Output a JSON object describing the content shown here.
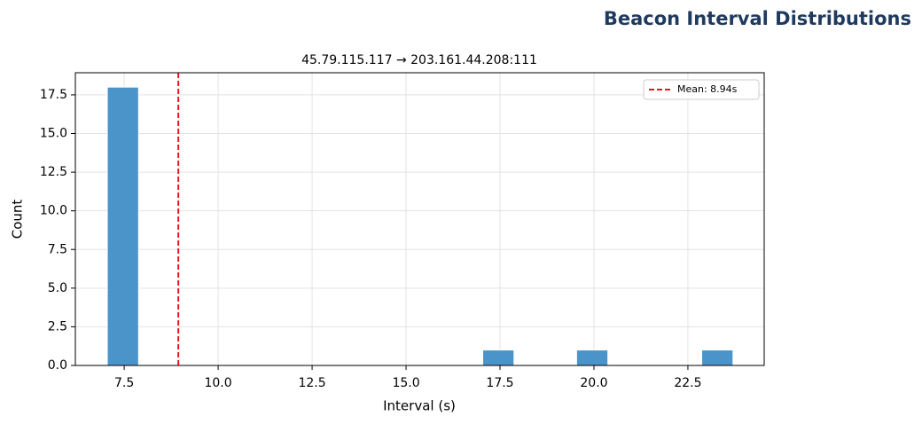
{
  "page_title": "Beacon Interval Distributions",
  "chart_data": {
    "type": "histogram",
    "title": "45.79.115.117 → 203.161.44.208:111",
    "xlabel": "Interval (s)",
    "ylabel": "Count",
    "bins": [
      7.05,
      7.8825,
      8.715,
      9.5475,
      10.38,
      11.2125,
      12.045,
      12.8775,
      13.71,
      14.5425,
      15.375,
      16.2075,
      17.04,
      17.8725,
      18.705,
      19.5375,
      20.37,
      21.2025,
      22.035,
      22.8675,
      23.7
    ],
    "counts": [
      18,
      0,
      0,
      0,
      0,
      0,
      0,
      0,
      0,
      0,
      0,
      0,
      1,
      0,
      0,
      1,
      0,
      0,
      0,
      1
    ],
    "color": "#4a94c9",
    "xlim": [
      6.2,
      24.53
    ],
    "ylim": [
      0,
      18.93
    ],
    "xticks": [
      7.5,
      {
        "value": 10,
        "label": "10.0"
      },
      12.5,
      {
        "value": 15,
        "label": "15.0"
      },
      17.5,
      {
        "value": 20,
        "label": "20.0"
      },
      22.5
    ],
    "yticks": [
      {
        "value": 0,
        "label": "0.0"
      },
      2.5,
      {
        "value": 5,
        "label": "5.0"
      },
      7.5,
      {
        "value": 10,
        "label": "10.0"
      },
      12.5,
      {
        "value": 15,
        "label": "15.0"
      },
      17.5
    ],
    "grid": true,
    "mean_line": {
      "value": 8.94,
      "label": "Mean: 8.94s",
      "color": "#e31a1c"
    },
    "legend": "upper right"
  }
}
